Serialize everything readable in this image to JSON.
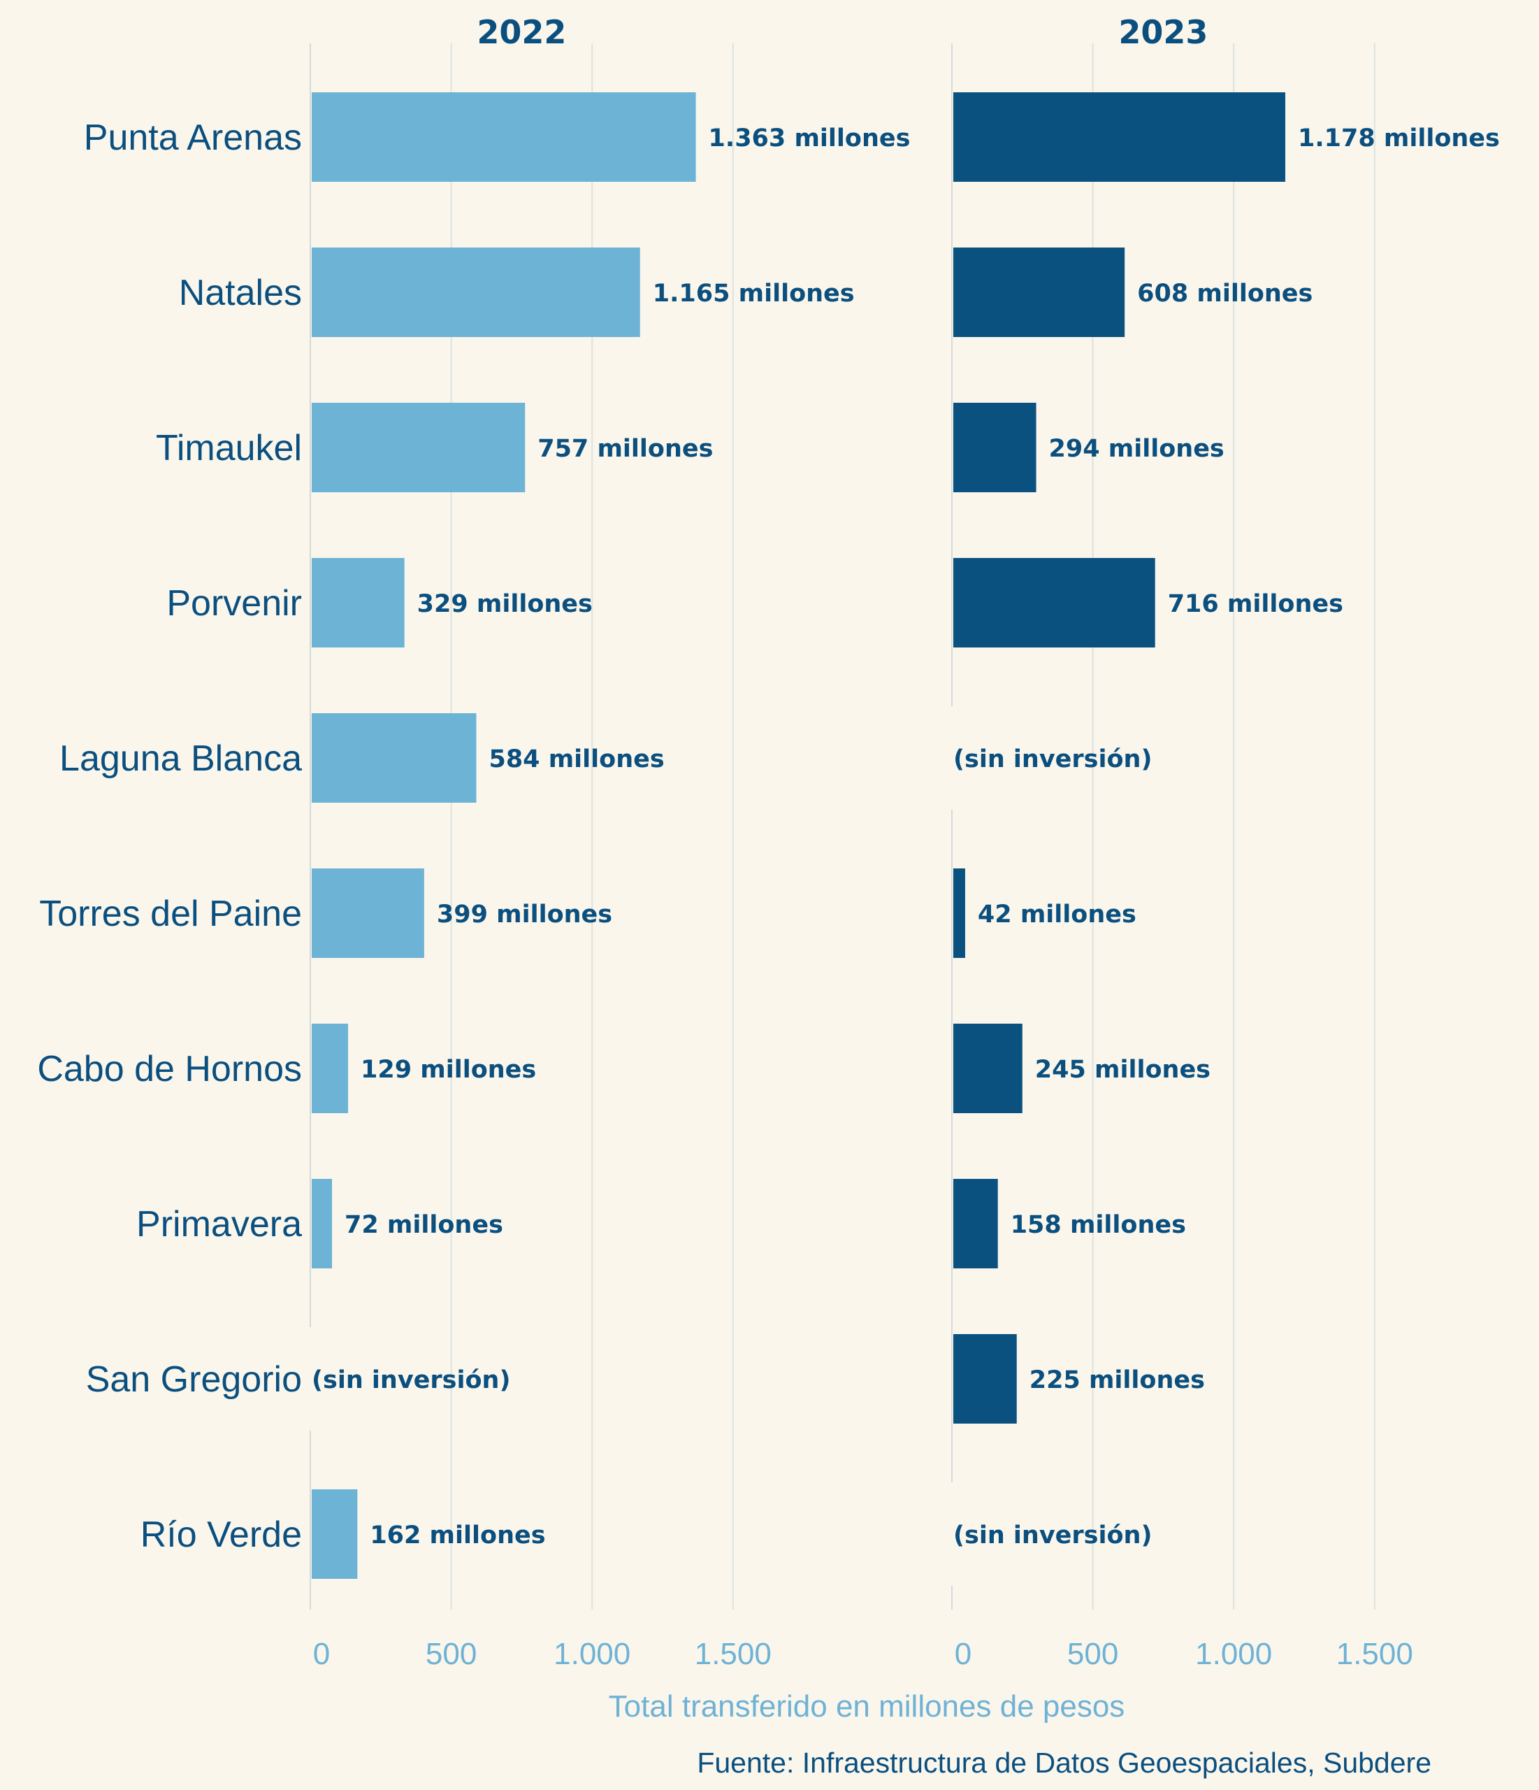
{
  "chart_data": {
    "type": "bar",
    "orientation": "horizontal",
    "categories": [
      "Punta Arenas",
      "Natales",
      "Timaukel",
      "Porvenir",
      "Laguna Blanca",
      "Torres del Paine",
      "Cabo de Hornos",
      "Primavera",
      "San Gregorio",
      "Río Verde"
    ],
    "panels": [
      {
        "title": "2022",
        "color": "#6cb3d5",
        "values": [
          1363,
          1165,
          757,
          329,
          584,
          399,
          129,
          72,
          null,
          162
        ],
        "labels": [
          "1.363 millones",
          "1.165 millones",
          "757 millones",
          "329 millones",
          "584 millones",
          "399 millones",
          "129 millones",
          "72 millones",
          "(sin inversión)",
          "162 millones"
        ]
      },
      {
        "title": "2023",
        "color": "#0a5180",
        "values": [
          1178,
          608,
          294,
          716,
          null,
          42,
          245,
          158,
          225,
          null
        ],
        "labels": [
          "1.178 millones",
          "608 millones",
          "294 millones",
          "716 millones",
          "(sin inversión)",
          "42 millones",
          "245 millones",
          "158 millones",
          "225 millones",
          "(sin inversión)"
        ]
      }
    ],
    "xlim": [
      0,
      1800
    ],
    "ticks": [
      0,
      500,
      1000,
      1500
    ],
    "tick_labels": [
      "0",
      "500",
      "1.000",
      "1.500"
    ],
    "xlabel": "Total transferido en millones de pesos",
    "source": "Fuente: Infraestructura de Datos Geoespaciales, Subdere",
    "grid": true,
    "legend": "none"
  }
}
